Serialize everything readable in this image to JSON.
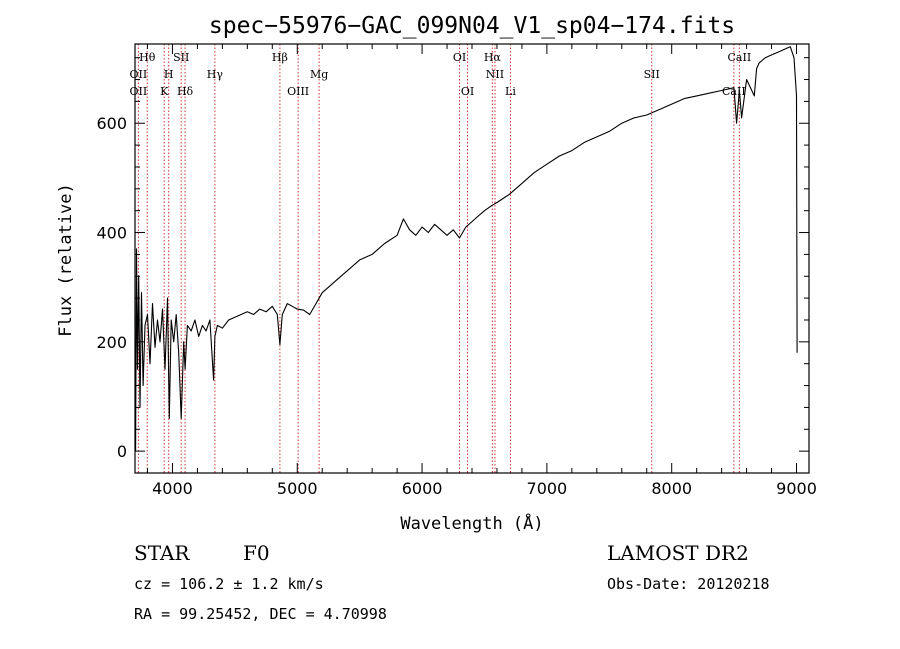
{
  "chart_data": {
    "type": "line",
    "title": "spec−55976−GAC_099N04_V1_sp04−174.fits",
    "xlabel": "Wavelength (Å)",
    "ylabel": "Flux (relative)",
    "xlim": [
      3700,
      9100
    ],
    "ylim": [
      -40,
      745
    ],
    "x_ticks": [
      4000,
      5000,
      6000,
      7000,
      8000,
      9000
    ],
    "y_ticks": [
      0,
      200,
      400,
      600
    ],
    "grid": false,
    "series": [
      {
        "x": [
          3705,
          3712,
          3720,
          3730,
          3740,
          3752,
          3765,
          3780,
          3800,
          3820,
          3840,
          3860,
          3880,
          3900,
          3920,
          3940,
          3960,
          3975,
          3990,
          4010,
          4030,
          4050,
          4070,
          4090,
          4101,
          4120,
          4150,
          4180,
          4210,
          4240,
          4270,
          4300,
          4330,
          4340,
          4360,
          4400,
          4450,
          4500,
          4550,
          4600,
          4650,
          4700,
          4750,
          4800,
          4840,
          4861,
          4880,
          4920,
          4960,
          5000,
          5050,
          5100,
          5150,
          5200,
          5250,
          5300,
          5400,
          5500,
          5600,
          5700,
          5800,
          5850,
          5900,
          5950,
          6000,
          6050,
          6100,
          6150,
          6200,
          6250,
          6300,
          6350,
          6400,
          6450,
          6500,
          6563,
          6600,
          6700,
          6800,
          6900,
          7000,
          7100,
          7200,
          7300,
          7400,
          7500,
          7600,
          7700,
          7800,
          7900,
          8000,
          8100,
          8200,
          8300,
          8400,
          8498,
          8520,
          8542,
          8560,
          8600,
          8662,
          8680,
          8700,
          8750,
          8800,
          8850,
          8900,
          8950,
          8980,
          9000,
          9005
        ],
        "y": [
          0,
          370,
          150,
          320,
          80,
          290,
          120,
          230,
          250,
          160,
          270,
          190,
          240,
          200,
          260,
          150,
          280,
          60,
          240,
          200,
          250,
          180,
          60,
          200,
          150,
          230,
          220,
          240,
          210,
          230,
          220,
          240,
          130,
          210,
          230,
          225,
          240,
          245,
          250,
          255,
          250,
          260,
          255,
          265,
          250,
          195,
          250,
          270,
          265,
          260,
          258,
          250,
          270,
          290,
          300,
          310,
          330,
          350,
          360,
          380,
          395,
          425,
          405,
          395,
          410,
          400,
          415,
          405,
          395,
          405,
          390,
          410,
          420,
          430,
          440,
          450,
          455,
          470,
          490,
          510,
          525,
          540,
          550,
          565,
          575,
          585,
          600,
          610,
          615,
          625,
          635,
          645,
          650,
          655,
          660,
          665,
          600,
          660,
          610,
          680,
          650,
          700,
          710,
          720,
          725,
          730,
          735,
          740,
          720,
          650,
          180
        ]
      }
    ],
    "spectral_lines": [
      {
        "label": "Hθ",
        "x": 3798,
        "row": 1
      },
      {
        "label": "OII",
        "x": 3727,
        "row": 2
      },
      {
        "label": "H",
        "x": 3970,
        "row": 2
      },
      {
        "label": "SII",
        "x": 4070,
        "row": 1
      },
      {
        "label": "Hγ",
        "x": 4340,
        "row": 2
      },
      {
        "label": "Hβ",
        "x": 4861,
        "row": 1
      },
      {
        "label": "Mg",
        "x": 5175,
        "row": 2
      },
      {
        "label": "OIII",
        "x": 5007,
        "row": 3
      },
      {
        "label": "OI",
        "x": 6300,
        "row": 1
      },
      {
        "label": "Hα",
        "x": 6563,
        "row": 1
      },
      {
        "label": "NII",
        "x": 6584,
        "row": 2
      },
      {
        "label": "OI",
        "x": 6364,
        "row": 3
      },
      {
        "label": "Li",
        "x": 6708,
        "row": 3
      },
      {
        "label": "SII",
        "x": 7840,
        "row": 2
      },
      {
        "label": "CaII",
        "x": 8542,
        "row": 1
      },
      {
        "label": "CaII",
        "x": 8498,
        "row": 3
      },
      {
        "label": "OII",
        "x": 3727,
        "row": 3
      },
      {
        "label": "K",
        "x": 3934,
        "row": 3
      },
      {
        "label": "Hδ",
        "x": 4101,
        "row": 3
      }
    ],
    "line_markers_x": [
      3727,
      3798,
      3934,
      3970,
      4070,
      4101,
      4340,
      4861,
      5007,
      5175,
      6300,
      6364,
      6563,
      6584,
      6708,
      7840,
      8498,
      8542
    ],
    "line_color": "#cc3333",
    "spectrum_color": "#000000"
  },
  "info": {
    "object_class": "STAR",
    "subclass": "F0",
    "survey": "LAMOST DR2",
    "cz": "cz = 106.2 ± 1.2 km/s",
    "obs_date": "Obs-Date: 20120218",
    "coords": "RA =  99.25452, DEC =   4.70998"
  }
}
